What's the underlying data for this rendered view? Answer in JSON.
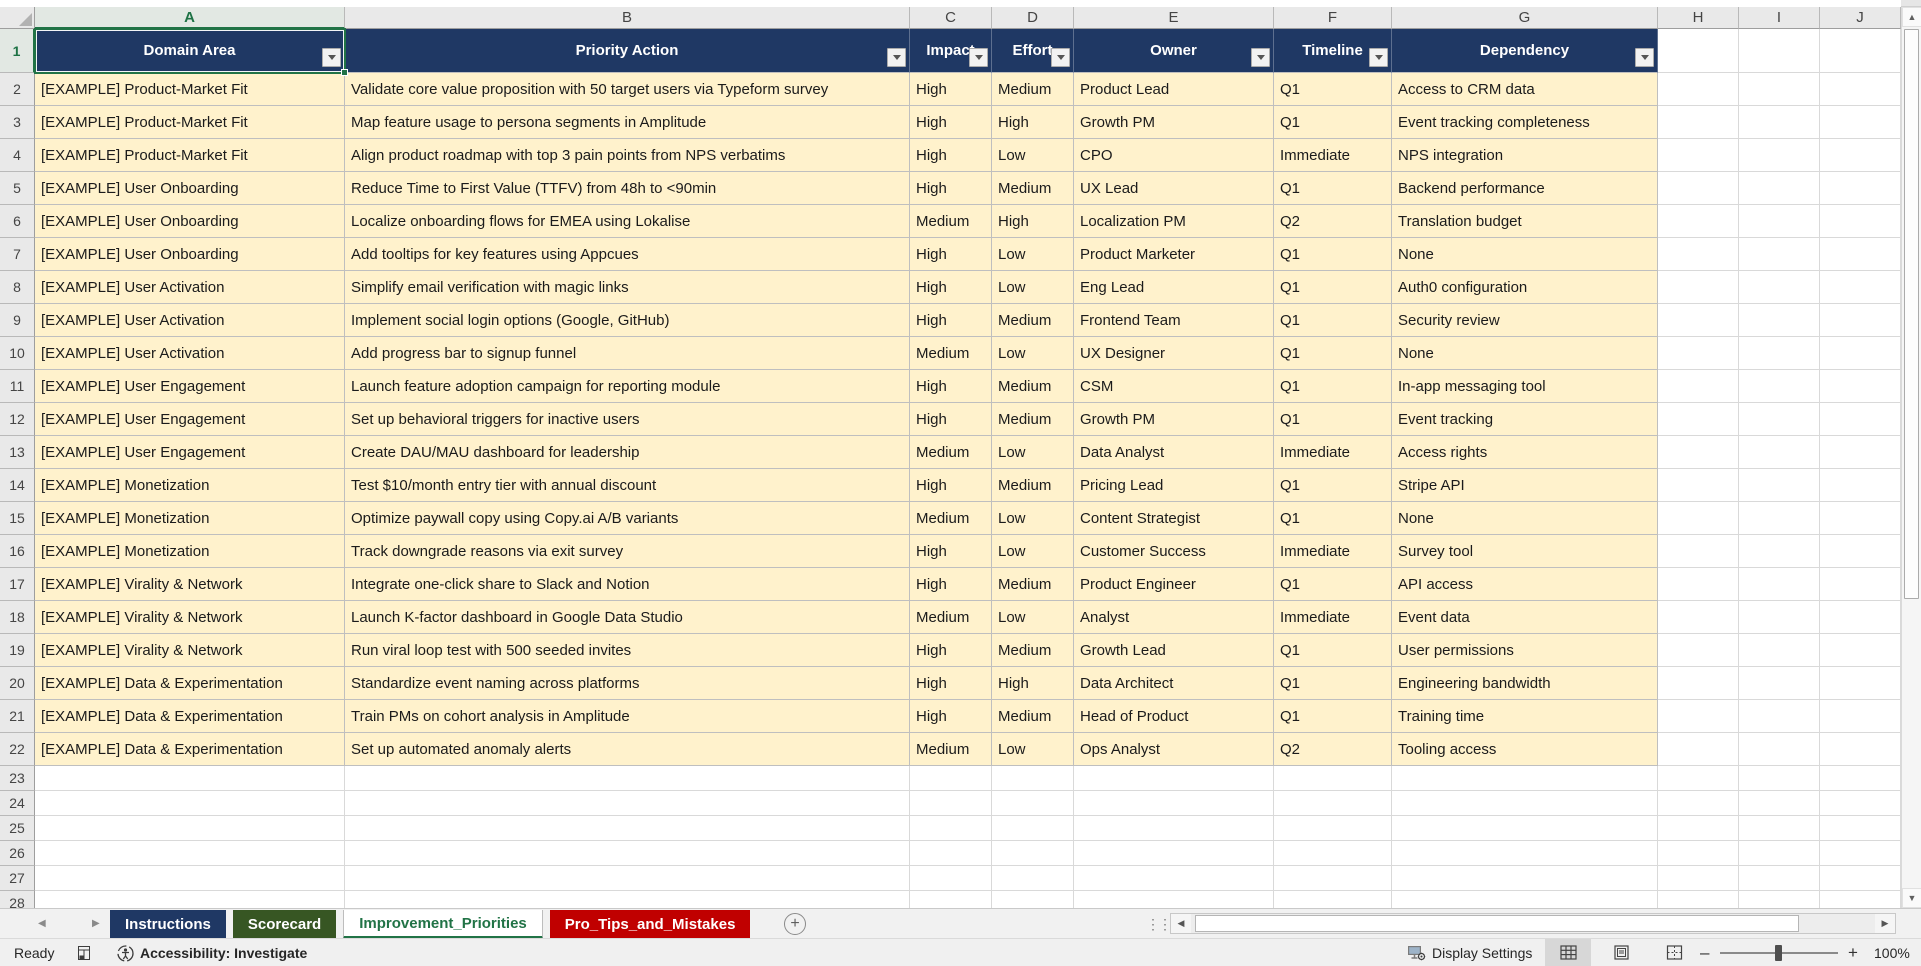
{
  "grid": {
    "column_letters": [
      "A",
      "B",
      "C",
      "D",
      "E",
      "F",
      "G",
      "H",
      "I",
      "J"
    ],
    "selected_cell": "A1",
    "selected_column": "A",
    "selected_row": "1",
    "table": {
      "headers": [
        "Domain Area",
        "Priority Action",
        "Impact",
        "Effort",
        "Owner",
        "Timeline",
        "Dependency"
      ],
      "first_data_row": 2,
      "rows": [
        [
          "[EXAMPLE] Product-Market Fit",
          "Validate core value proposition with 50 target users via Typeform survey",
          "High",
          "Medium",
          "Product Lead",
          "Q1",
          "Access to CRM data"
        ],
        [
          "[EXAMPLE] Product-Market Fit",
          "Map feature usage to persona segments in Amplitude",
          "High",
          "High",
          "Growth PM",
          "Q1",
          "Event tracking completeness"
        ],
        [
          "[EXAMPLE] Product-Market Fit",
          "Align product roadmap with top 3 pain points from NPS verbatims",
          "High",
          "Low",
          "CPO",
          "Immediate",
          "NPS integration"
        ],
        [
          "[EXAMPLE] User Onboarding",
          "Reduce Time to First Value (TTFV) from 48h to <90min",
          "High",
          "Medium",
          "UX Lead",
          "Q1",
          "Backend performance"
        ],
        [
          "[EXAMPLE] User Onboarding",
          "Localize onboarding flows for EMEA using Lokalise",
          "Medium",
          "High",
          "Localization PM",
          "Q2",
          "Translation budget"
        ],
        [
          "[EXAMPLE] User Onboarding",
          "Add tooltips for key features using Appcues",
          "High",
          "Low",
          "Product Marketer",
          "Q1",
          "None"
        ],
        [
          "[EXAMPLE] User Activation",
          "Simplify email verification with magic links",
          "High",
          "Low",
          "Eng Lead",
          "Q1",
          "Auth0 configuration"
        ],
        [
          "[EXAMPLE] User Activation",
          "Implement social login options (Google, GitHub)",
          "High",
          "Medium",
          "Frontend Team",
          "Q1",
          "Security review"
        ],
        [
          "[EXAMPLE] User Activation",
          "Add progress bar to signup funnel",
          "Medium",
          "Low",
          "UX Designer",
          "Q1",
          "None"
        ],
        [
          "[EXAMPLE] User Engagement",
          "Launch feature adoption campaign for reporting module",
          "High",
          "Medium",
          "CSM",
          "Q1",
          "In-app messaging tool"
        ],
        [
          "[EXAMPLE] User Engagement",
          "Set up behavioral triggers for inactive users",
          "High",
          "Medium",
          "Growth PM",
          "Q1",
          "Event tracking"
        ],
        [
          "[EXAMPLE] User Engagement",
          "Create DAU/MAU dashboard for leadership",
          "Medium",
          "Low",
          "Data Analyst",
          "Immediate",
          "Access rights"
        ],
        [
          "[EXAMPLE] Monetization",
          "Test $10/month entry tier with annual discount",
          "High",
          "Medium",
          "Pricing Lead",
          "Q1",
          "Stripe API"
        ],
        [
          "[EXAMPLE] Monetization",
          "Optimize paywall copy using Copy.ai A/B variants",
          "Medium",
          "Low",
          "Content Strategist",
          "Q1",
          "None"
        ],
        [
          "[EXAMPLE] Monetization",
          "Track downgrade reasons via exit survey",
          "High",
          "Low",
          "Customer Success",
          "Immediate",
          "Survey tool"
        ],
        [
          "[EXAMPLE] Virality & Network",
          "Integrate one-click share to Slack and Notion",
          "High",
          "Medium",
          "Product Engineer",
          "Q1",
          "API access"
        ],
        [
          "[EXAMPLE] Virality & Network",
          "Launch K-factor dashboard in Google Data Studio",
          "Medium",
          "Low",
          "Analyst",
          "Immediate",
          "Event data"
        ],
        [
          "[EXAMPLE] Virality & Network",
          "Run viral loop test with 500 seeded invites",
          "High",
          "Medium",
          "Growth Lead",
          "Q1",
          "User permissions"
        ],
        [
          "[EXAMPLE] Data & Experimentation",
          "Standardize event naming across platforms",
          "High",
          "High",
          "Data Architect",
          "Q1",
          "Engineering bandwidth"
        ],
        [
          "[EXAMPLE] Data & Experimentation",
          "Train PMs on cohort analysis in Amplitude",
          "High",
          "Medium",
          "Head of Product",
          "Q1",
          "Training time"
        ],
        [
          "[EXAMPLE] Data & Experimentation",
          "Set up automated anomaly alerts",
          "Medium",
          "Low",
          "Ops Analyst",
          "Q2",
          "Tooling access"
        ]
      ]
    },
    "empty_row_numbers": [
      23,
      24,
      25,
      26,
      27,
      28
    ]
  },
  "colors": {
    "header_fill": "#1F3864",
    "header_text": "#FFFFFF",
    "data_fill": "#FFF2CC",
    "selection_green": "#217346",
    "tab_instructions_bg": "#1F3864",
    "tab_scorecard_bg": "#375623",
    "tab_protips_bg": "#C00000",
    "active_tab_text": "#217346"
  },
  "tabbar": {
    "tabs": [
      {
        "label": "Instructions",
        "type": "colored",
        "bg": "#1F3864"
      },
      {
        "label": "Scorecard",
        "type": "colored",
        "bg": "#375623"
      },
      {
        "label": "Improvement_Priorities",
        "type": "active",
        "bg": "#FFFFFF"
      },
      {
        "label": "Pro_Tips_and_Mistakes",
        "type": "colored",
        "bg": "#C00000"
      }
    ],
    "add_sheet_label": "+"
  },
  "statusbar": {
    "ready_label": "Ready",
    "accessibility_label": "Accessibility: Investigate",
    "display_settings_label": "Display Settings",
    "zoom_percent": "100%"
  }
}
